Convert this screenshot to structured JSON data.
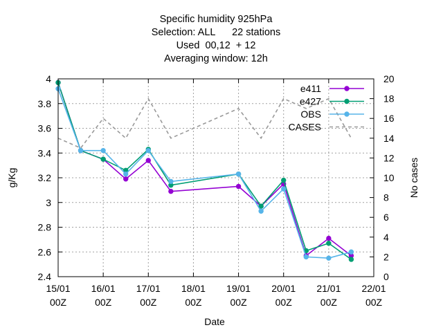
{
  "chart_data": {
    "type": "line",
    "title_lines": [
      "Specific humidity 925hPa",
      "Selection: ALL      22 stations",
      "Used  00,12  + 12",
      "Averaging window: 12h"
    ],
    "xlabel": "Date",
    "ylabel": "g/Kg",
    "y2label": "No cases",
    "xlim": [
      0,
      7
    ],
    "ylim": [
      2.4,
      4.0
    ],
    "y2lim": [
      0,
      20
    ],
    "grid": true,
    "legend_position": "top-right",
    "x_ticks": [
      {
        "x": 0,
        "line1": "15/01",
        "line2": "00Z"
      },
      {
        "x": 1,
        "line1": "16/01",
        "line2": "00Z"
      },
      {
        "x": 2,
        "line1": "17/01",
        "line2": "00Z"
      },
      {
        "x": 3,
        "line1": "18/01",
        "line2": "00Z"
      },
      {
        "x": 4,
        "line1": "19/01",
        "line2": "00Z"
      },
      {
        "x": 5,
        "line1": "20/01",
        "line2": "00Z"
      },
      {
        "x": 6,
        "line1": "21/01",
        "line2": "00Z"
      },
      {
        "x": 7,
        "line1": "22/01",
        "line2": "00Z"
      }
    ],
    "y_ticks": [
      {
        "v": 2.4,
        "label": "2.4"
      },
      {
        "v": 2.6,
        "label": "2.6"
      },
      {
        "v": 2.8,
        "label": "2.8"
      },
      {
        "v": 3.0,
        "label": "3"
      },
      {
        "v": 3.2,
        "label": "3.2"
      },
      {
        "v": 3.4,
        "label": "3.4"
      },
      {
        "v": 3.6,
        "label": "3.6"
      },
      {
        "v": 3.8,
        "label": "3.8"
      },
      {
        "v": 4.0,
        "label": "4"
      }
    ],
    "y2_ticks": [
      {
        "v": 0,
        "label": "0"
      },
      {
        "v": 2,
        "label": "2"
      },
      {
        "v": 4,
        "label": "4"
      },
      {
        "v": 6,
        "label": "6"
      },
      {
        "v": 8,
        "label": "8"
      },
      {
        "v": 10,
        "label": "10"
      },
      {
        "v": 12,
        "label": "12"
      },
      {
        "v": 14,
        "label": "14"
      },
      {
        "v": 16,
        "label": "16"
      },
      {
        "v": 18,
        "label": "18"
      },
      {
        "v": 20,
        "label": "20"
      }
    ],
    "series": [
      {
        "name": "e411",
        "color": "#9400d3",
        "axis": "y1",
        "dash": false,
        "marker": true,
        "x": [
          0,
          0.5,
          1,
          1.5,
          2,
          2.5,
          4,
          4.5,
          5,
          5.5,
          6,
          6.5
        ],
        "y": [
          3.97,
          3.42,
          3.35,
          3.19,
          3.34,
          3.09,
          3.13,
          2.97,
          3.15,
          2.57,
          2.71,
          2.57
        ]
      },
      {
        "name": "e427",
        "color": "#009e73",
        "axis": "y1",
        "dash": false,
        "marker": true,
        "x": [
          0,
          0.5,
          1,
          1.5,
          2,
          2.5,
          4,
          4.5,
          5,
          5.5,
          6,
          6.5
        ],
        "y": [
          3.97,
          3.42,
          3.35,
          3.26,
          3.43,
          3.14,
          3.23,
          2.97,
          3.18,
          2.61,
          2.67,
          2.54
        ]
      },
      {
        "name": "OBS",
        "color": "#56b4e9",
        "axis": "y1",
        "dash": false,
        "marker": true,
        "x": [
          0,
          0.5,
          1,
          1.5,
          2,
          2.5,
          4,
          4.5,
          5,
          5.5,
          6,
          6.5
        ],
        "y": [
          3.92,
          3.42,
          3.42,
          3.23,
          3.42,
          3.17,
          3.23,
          2.93,
          3.11,
          2.56,
          2.55,
          2.6
        ]
      },
      {
        "name": "CASES",
        "color": "#999999",
        "axis": "y2",
        "dash": true,
        "marker": false,
        "x": [
          0,
          0.5,
          1,
          1.5,
          2,
          2.5,
          4,
          4.5,
          5,
          5.5,
          6,
          6.5
        ],
        "y": [
          14,
          13,
          16,
          14,
          18,
          14,
          17,
          14,
          18,
          17,
          18,
          14
        ]
      }
    ]
  }
}
